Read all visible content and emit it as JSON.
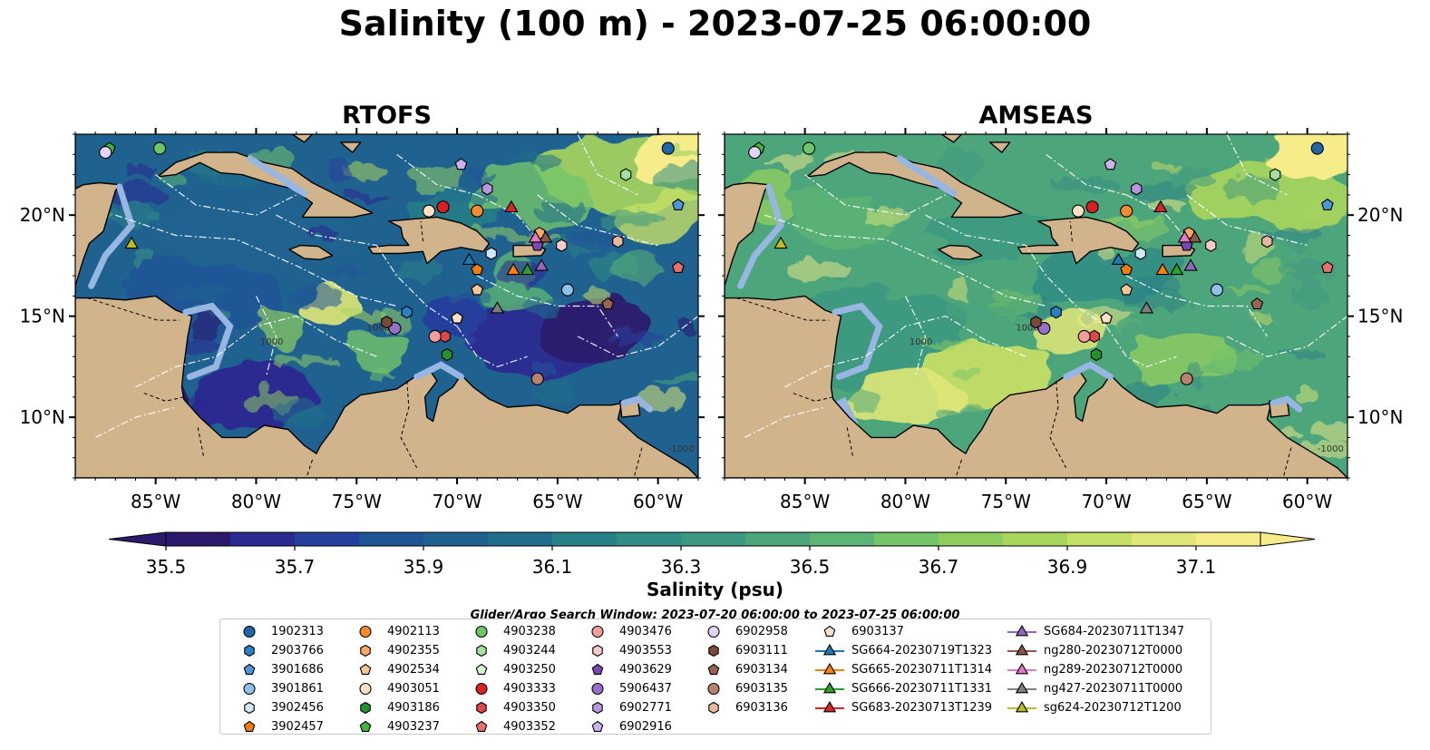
{
  "figure": {
    "title": "Salinity (100 m) - 2023-07-25 06:00:00",
    "panels": [
      {
        "title": "RTOFS",
        "field": "rtofs"
      },
      {
        "title": "AMSEAS",
        "field": "amseas"
      }
    ],
    "lon_ticks": [
      "85°W",
      "80°W",
      "75°W",
      "70°W",
      "65°W",
      "60°W"
    ],
    "lat_ticks": [
      "20°N",
      "15°N",
      "10°N"
    ],
    "extent": {
      "lon": [
        -89,
        -58
      ],
      "lat": [
        7,
        24
      ]
    },
    "contour_labels": [
      "1000",
      "1000",
      "-1000"
    ],
    "colors": {
      "land": "#d2b48c",
      "ocean": "#97b6e1",
      "coast": "#000000"
    }
  },
  "colorbar": {
    "label": "Salinity (psu)",
    "ticks": [
      "35.5",
      "35.7",
      "35.9",
      "36.1",
      "36.3",
      "36.5",
      "36.7",
      "36.9",
      "37.1"
    ],
    "range": [
      35.5,
      37.2
    ],
    "colors": [
      "#2b1a6b",
      "#2b2a91",
      "#253f9d",
      "#1f5497",
      "#1f6290",
      "#236e8b",
      "#288087",
      "#308c84",
      "#3c9880",
      "#4ca57b",
      "#5db474",
      "#74c46a",
      "#8fcd61",
      "#a9d55c",
      "#c5de65",
      "#dfe778",
      "#f6ec8a"
    ]
  },
  "search_window": "Glider/Argo Search Window: 2023-07-20 06:00:00 to 2023-07-25 06:00:00",
  "legend": {
    "items": [
      {
        "label": "1902313",
        "marker": "circle",
        "color": "#1f66a8",
        "lon": -59.5,
        "lat": 23.3
      },
      {
        "label": "2903766",
        "marker": "hexagon",
        "color": "#2b7fc4",
        "lon": -72.5,
        "lat": 15.2
      },
      {
        "label": "3901686",
        "marker": "pentagon",
        "color": "#4b97d8",
        "lon": -59.0,
        "lat": 20.5
      },
      {
        "label": "3901861",
        "marker": "circle",
        "color": "#8ec1ea",
        "lon": -64.5,
        "lat": 16.3
      },
      {
        "label": "3902456",
        "marker": "hexagon",
        "color": "#cfe7f7",
        "lon": -68.3,
        "lat": 18.1
      },
      {
        "label": "3902457",
        "marker": "pentagon",
        "color": "#f37b10",
        "lon": -69.0,
        "lat": 17.3
      },
      {
        "label": "4902113",
        "marker": "circle",
        "color": "#f58b30",
        "lon": -69.0,
        "lat": 20.2
      },
      {
        "label": "4902355",
        "marker": "hexagon",
        "color": "#f8a868",
        "lon": -65.9,
        "lat": 19.1
      },
      {
        "label": "4902534",
        "marker": "pentagon",
        "color": "#f9c494",
        "lon": -69.0,
        "lat": 16.3
      },
      {
        "label": "4903051",
        "marker": "circle",
        "color": "#fde1c4",
        "lon": -71.4,
        "lat": 20.2
      },
      {
        "label": "4903186",
        "marker": "hexagon",
        "color": "#23912d",
        "lon": -70.5,
        "lat": 13.1
      },
      {
        "label": "4903237",
        "marker": "pentagon",
        "color": "#42b63b",
        "lon": -87.3,
        "lat": 23.3
      },
      {
        "label": "4903238",
        "marker": "circle",
        "color": "#6cc66c",
        "lon": -84.8,
        "lat": 23.3
      },
      {
        "label": "4903244",
        "marker": "hexagon",
        "color": "#a3e0a0",
        "lon": -61.6,
        "lat": 22.0
      },
      {
        "label": "4903250",
        "marker": "pentagon",
        "color": "#d5f5ce",
        "lon": -70.0,
        "lat": 14.9
      },
      {
        "label": "4903333",
        "marker": "circle",
        "color": "#d92020",
        "lon": -70.7,
        "lat": 20.4
      },
      {
        "label": "4903350",
        "marker": "hexagon",
        "color": "#de4848",
        "lon": -70.6,
        "lat": 14.0
      },
      {
        "label": "4903352",
        "marker": "pentagon",
        "color": "#ea6f6f",
        "lon": -59.0,
        "lat": 17.4
      },
      {
        "label": "4903476",
        "marker": "circle",
        "color": "#f49d9d",
        "lon": -71.1,
        "lat": 14.0
      },
      {
        "label": "4903553",
        "marker": "hexagon",
        "color": "#fbcaca",
        "lon": -64.8,
        "lat": 18.5
      },
      {
        "label": "4903629",
        "marker": "pentagon",
        "color": "#7d47b3",
        "lon": -66.0,
        "lat": 18.5
      },
      {
        "label": "5906437",
        "marker": "circle",
        "color": "#9a6fcb",
        "lon": -73.1,
        "lat": 14.4
      },
      {
        "label": "6902771",
        "marker": "hexagon",
        "color": "#b896e0",
        "lon": -68.5,
        "lat": 21.3
      },
      {
        "label": "6902916",
        "marker": "pentagon",
        "color": "#cdb2ee",
        "lon": -69.8,
        "lat": 22.5
      },
      {
        "label": "6902958",
        "marker": "circle",
        "color": "#e3d4f7",
        "lon": -87.5,
        "lat": 23.1
      },
      {
        "label": "6903111",
        "marker": "hexagon",
        "color": "#7a4a3a",
        "lon": -73.5,
        "lat": 14.7
      },
      {
        "label": "6903134",
        "marker": "pentagon",
        "color": "#9a6450",
        "lon": -62.5,
        "lat": 15.6
      },
      {
        "label": "6903135",
        "marker": "circle",
        "color": "#b8826e",
        "lon": -66.0,
        "lat": 11.9
      },
      {
        "label": "6903136",
        "marker": "hexagon",
        "color": "#e8b7a0",
        "lon": -62.0,
        "lat": 18.7
      },
      {
        "label": "6903137",
        "marker": "pentagon",
        "color": "#fde0c7",
        "lon": -70.0,
        "lat": 14.9
      },
      {
        "label": "SG664-20230719T1323",
        "marker": "triangle",
        "color": "#1f77b4",
        "lon": -69.4,
        "lat": 17.8
      },
      {
        "label": "SG665-20230711T1314",
        "marker": "triangle",
        "color": "#ff7f0e",
        "lon": -67.2,
        "lat": 17.3
      },
      {
        "label": "SG666-20230711T1331",
        "marker": "triangle",
        "color": "#2ca02c",
        "lon": -66.5,
        "lat": 17.3
      },
      {
        "label": "SG683-20230713T1239",
        "marker": "triangle",
        "color": "#d62728",
        "lon": -67.3,
        "lat": 20.4
      },
      {
        "label": "SG684-20230711T1347",
        "marker": "triangle",
        "color": "#9467bd",
        "lon": -65.8,
        "lat": 17.5
      },
      {
        "label": "ng280-20230712T0000",
        "marker": "triangle",
        "color": "#8c564b",
        "lon": -65.6,
        "lat": 18.9
      },
      {
        "label": "ng289-20230712T0000",
        "marker": "triangle",
        "color": "#e377c2",
        "lon": -66.1,
        "lat": 18.9
      },
      {
        "label": "ng427-20230711T0000",
        "marker": "triangle",
        "color": "#7f7f7f",
        "lon": -68.0,
        "lat": 15.4
      },
      {
        "label": "sg624-20230712T1200",
        "marker": "triangle",
        "color": "#bcbd22",
        "lon": -86.2,
        "lat": 18.6
      }
    ]
  }
}
